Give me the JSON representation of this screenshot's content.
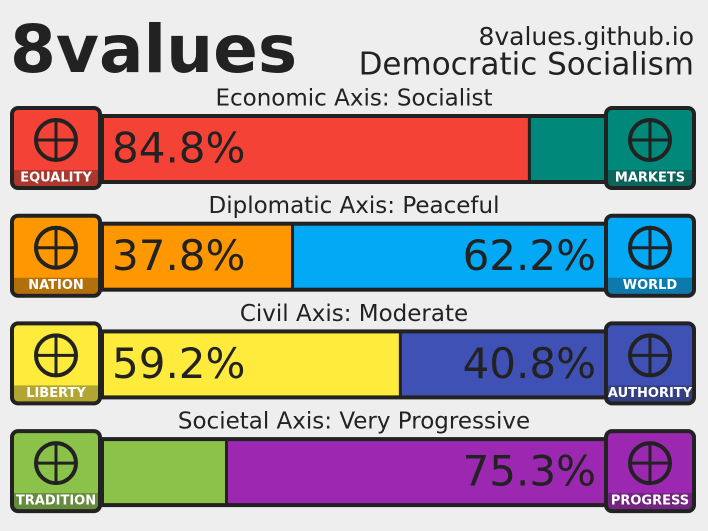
{
  "header": {
    "title": "8values",
    "site": "8values.github.io",
    "ideology": "Democratic Socialism"
  },
  "axes": [
    {
      "title": "Economic Axis: Socialist",
      "left_label": "EQUALITY",
      "right_label": "MARKETS",
      "left_color": "#f44336",
      "right_color": "#00897b",
      "values": [
        84.8,
        15.2
      ],
      "value_labels": [
        "84.8%",
        null
      ]
    },
    {
      "title": "Diplomatic Axis: Peaceful",
      "left_label": "NATION",
      "right_label": "WORLD",
      "left_color": "#ff9800",
      "right_color": "#03a9f4",
      "values": [
        37.8,
        62.2
      ],
      "value_labels": [
        "37.8%",
        "62.2%"
      ]
    },
    {
      "title": "Civil Axis: Moderate",
      "left_label": "LIBERTY",
      "right_label": "AUTHORITY",
      "left_color": "#ffeb3b",
      "right_color": "#3f51b5",
      "values": [
        59.2,
        40.8
      ],
      "value_labels": [
        "59.2%",
        "40.8%"
      ]
    },
    {
      "title": "Societal Axis: Very Progressive",
      "left_label": "TRADITION",
      "right_label": "PROGRESS",
      "left_color": "#8bc34a",
      "right_color": "#9c27b0",
      "values": [
        24.7,
        75.3
      ],
      "value_labels": [
        null,
        "75.3%"
      ]
    }
  ]
}
